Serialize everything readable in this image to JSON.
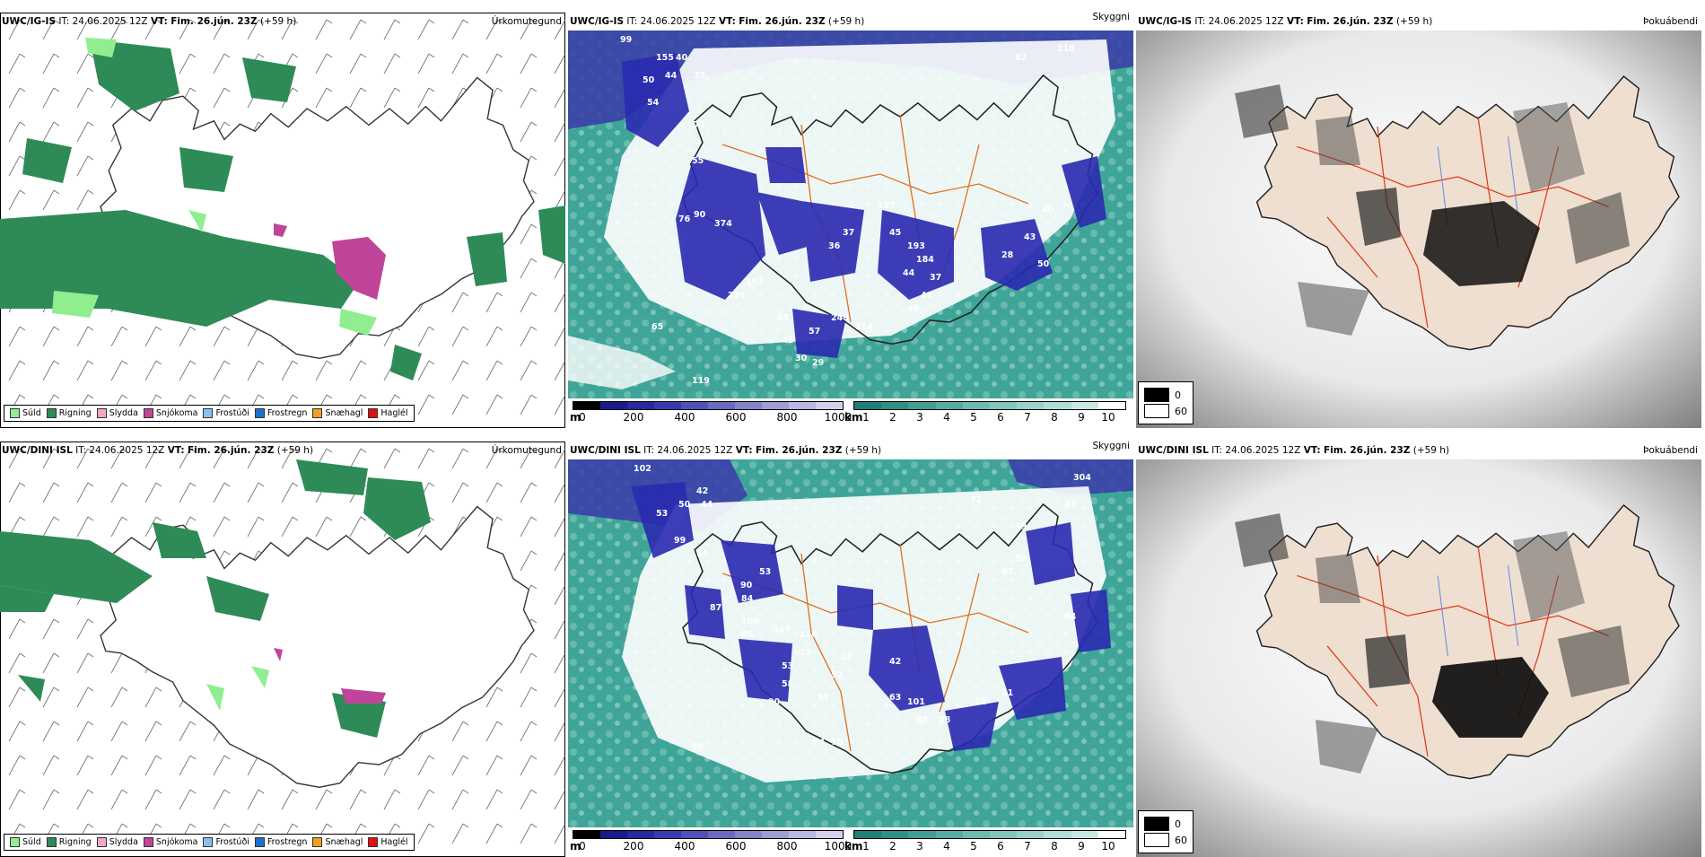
{
  "precip_legend": [
    {
      "label": "Súld",
      "color": "#90ee90"
    },
    {
      "label": "Rigning",
      "color": "#2e8b57"
    },
    {
      "label": "Slydda",
      "color": "#f4a6c8"
    },
    {
      "label": "Snjókoma",
      "color": "#c0449a"
    },
    {
      "label": "Frostúði",
      "color": "#87c0f0"
    },
    {
      "label": "Frostregn",
      "color": "#1e6fd0"
    },
    {
      "label": "Snæhagl",
      "color": "#f0a020"
    },
    {
      "label": "Haglél",
      "color": "#e01010"
    }
  ],
  "elev_scale": {
    "unit": "m",
    "ticks": [
      "0",
      "200",
      "400",
      "600",
      "800",
      "1000"
    ]
  },
  "vis_scale": {
    "unit": "km",
    "ticks": [
      "1",
      "2",
      "3",
      "4",
      "5",
      "6",
      "7",
      "8",
      "9",
      "10"
    ]
  },
  "fog_legend": [
    {
      "color": "#000000",
      "label": "0"
    },
    {
      "color": "#ffffff",
      "label": "60"
    }
  ],
  "rows": [
    {
      "model": "UWC/IG-IS",
      "it": "IT: 24.06.2025 12Z",
      "vt_label": "VT:",
      "vt": "Fim. 26.jún. 23Z",
      "offset": "(+59 h)",
      "panels": {
        "precip": "Úrkomutegund",
        "vis": "Skyggni",
        "fog": "Þokuábendi"
      },
      "labels": {
        "top_left": "99",
        "top_right": "110",
        "nw_1": "155",
        "nw_2": "40",
        "nw_3": "44",
        "nw_4": "50",
        "nw_5": "35",
        "nw_6": "54",
        "nw_7": "72",
        "west_1": "55",
        "west_2": "76",
        "west_3": "90",
        "west_4": "374",
        "center_1": "37",
        "center_2": "36",
        "center_3": "45",
        "center_4": "193",
        "center_5": "184",
        "center_6": "44",
        "center_7": "37",
        "center_8": "41",
        "center_9": "45",
        "east_1": "28",
        "east_2": "43",
        "east_3": "50",
        "east_4": "40",
        "south_1": "65",
        "south_2": "42",
        "south_3": "57",
        "south_4": "30",
        "south_5": "29",
        "south_6": "248",
        "south_7": "114",
        "sw_1": "119",
        "sw_2": "65",
        "sw_3": "291",
        "sw_4": "192",
        "ne_1": "82",
        "ne_2": "127"
      }
    },
    {
      "model": "UWC/DINI ISL",
      "it": "IT: 24.06.2025 12Z",
      "vt_label": "VT:",
      "vt": "Fim. 26.jún. 23Z",
      "offset": "(+59 h)",
      "panels": {
        "precip": "Úrkomutegund",
        "vis": "Skyggni",
        "fog": "Þokuábendi"
      },
      "labels": {
        "top_left": "102",
        "top_right": "304",
        "nw_1": "42",
        "nw_2": "50",
        "nw_3": "44",
        "nw_4": "53",
        "nw_5": "99",
        "nw_6": "11",
        "nw_7": "53",
        "west_1": "90",
        "west_2": "84",
        "west_3": "87",
        "west_4": "100",
        "center_1": "66",
        "center_2": "347",
        "center_3": "32",
        "center_4": "42",
        "center_5": "52",
        "center_6": "63",
        "center_7": "101",
        "center_8": "68",
        "center_9": "38",
        "east_1": "72",
        "east_2": "99",
        "east_3": "92",
        "east_4": "97",
        "south_1": "57",
        "south_2": "54",
        "south_3": "70",
        "south_4": "98",
        "south_5": "41",
        "south_6": "12",
        "south_7": "90",
        "sw_1": "53",
        "sw_2": "58",
        "sw_3": "72",
        "sw_4": "116",
        "ne_1": "45",
        "ne_2": "64"
      }
    }
  ]
}
